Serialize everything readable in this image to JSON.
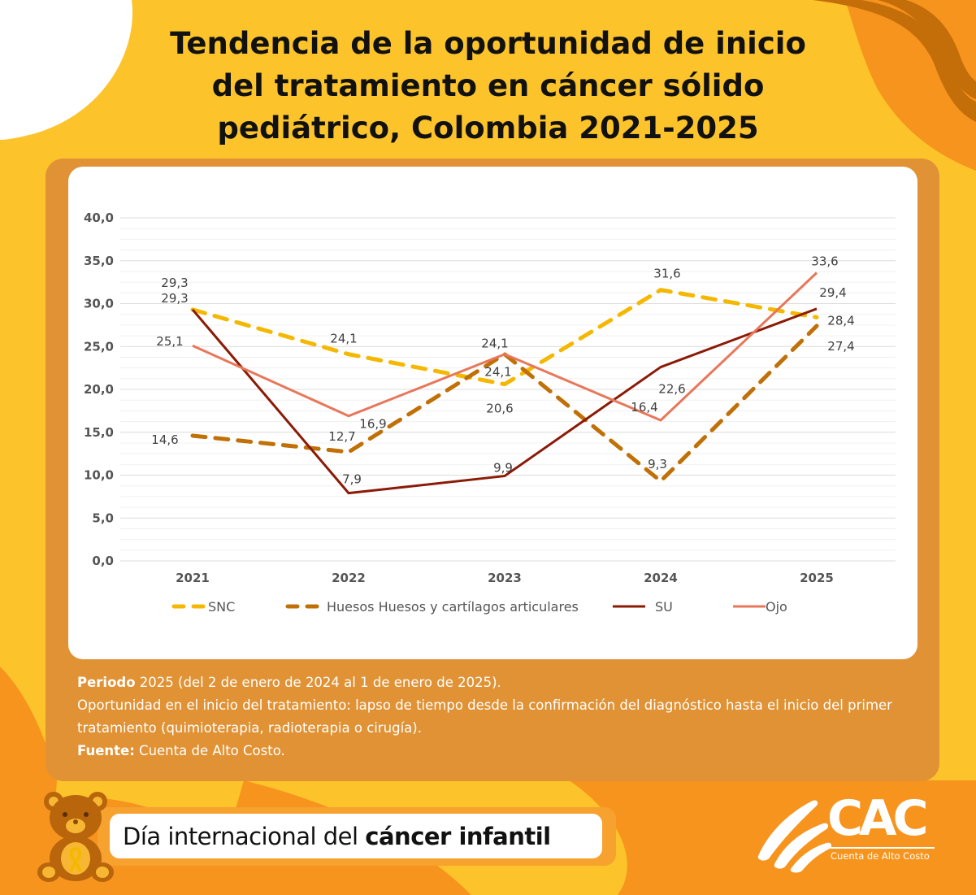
{
  "title": {
    "line1": "Tendencia de la oportunidad de inicio",
    "line2": "del tratamiento en cáncer sólido",
    "line3": "pediátrico, Colombia 2021-2025"
  },
  "colors": {
    "background": "#fcc42a",
    "panel": "#e09235",
    "snc": "#f5b800",
    "huesos": "#c07006",
    "su": "#8b1a06",
    "ojo": "#e8775a"
  },
  "chart_data": {
    "type": "line",
    "title": "Tendencia de la oportunidad de inicio del tratamiento en cáncer sólido pediátrico, Colombia 2021-2025",
    "xlabel": "",
    "ylabel": "",
    "categories": [
      "2021",
      "2022",
      "2023",
      "2024",
      "2025"
    ],
    "ylim": [
      0,
      40
    ],
    "yticks": [
      "0,0",
      "5,0",
      "10,0",
      "15,0",
      "20,0",
      "25,0",
      "30,0",
      "35,0",
      "40,0"
    ],
    "grid": true,
    "legend_position": "bottom",
    "series": [
      {
        "name": "SNC",
        "style": "dashed",
        "color": "#f5b800",
        "values": [
          29.3,
          24.1,
          20.6,
          31.6,
          28.4
        ],
        "labels": [
          "29,3",
          "24,1",
          "20,6",
          "31,6",
          "28,4"
        ]
      },
      {
        "name": "Huesos Huesos y cartílagos articulares",
        "style": "dashed",
        "color": "#c07006",
        "values": [
          14.6,
          12.7,
          24.1,
          9.3,
          27.4
        ],
        "labels": [
          "14,6",
          "12,7",
          "24,1",
          "9,3",
          "27,4"
        ]
      },
      {
        "name": "SU",
        "style": "solid",
        "color": "#8b1a06",
        "values": [
          29.3,
          7.9,
          9.9,
          22.6,
          29.4
        ],
        "labels": [
          "29,3",
          "7,9",
          "9,9",
          "22,6",
          "29,4"
        ]
      },
      {
        "name": "Ojo",
        "style": "solid",
        "color": "#e8775a",
        "values": [
          25.1,
          16.9,
          24.1,
          16.4,
          33.6
        ],
        "labels": [
          "25,1",
          "16,9",
          "24,1",
          "16,4",
          "33,6"
        ]
      }
    ]
  },
  "notes": {
    "periodo_label": "Periodo",
    "periodo_text": " 2025 (del 2 de enero de 2024 al 1 de enero de 2025).",
    "definition": "Oportunidad en el inicio del tratamiento: lapso de tiempo desde la confirmación del diagnóstico hasta el inicio del primer tratamiento (quimioterapia, radioterapia o cirugía).",
    "fuente_label": "Fuente:",
    "fuente_text": " Cuenta de Alto Costo."
  },
  "banner": {
    "text_regular": "Día internacional del ",
    "text_bold": "cáncer infantil"
  },
  "logo": {
    "acronym": "CAC",
    "name": "Cuenta de Alto Costo"
  }
}
